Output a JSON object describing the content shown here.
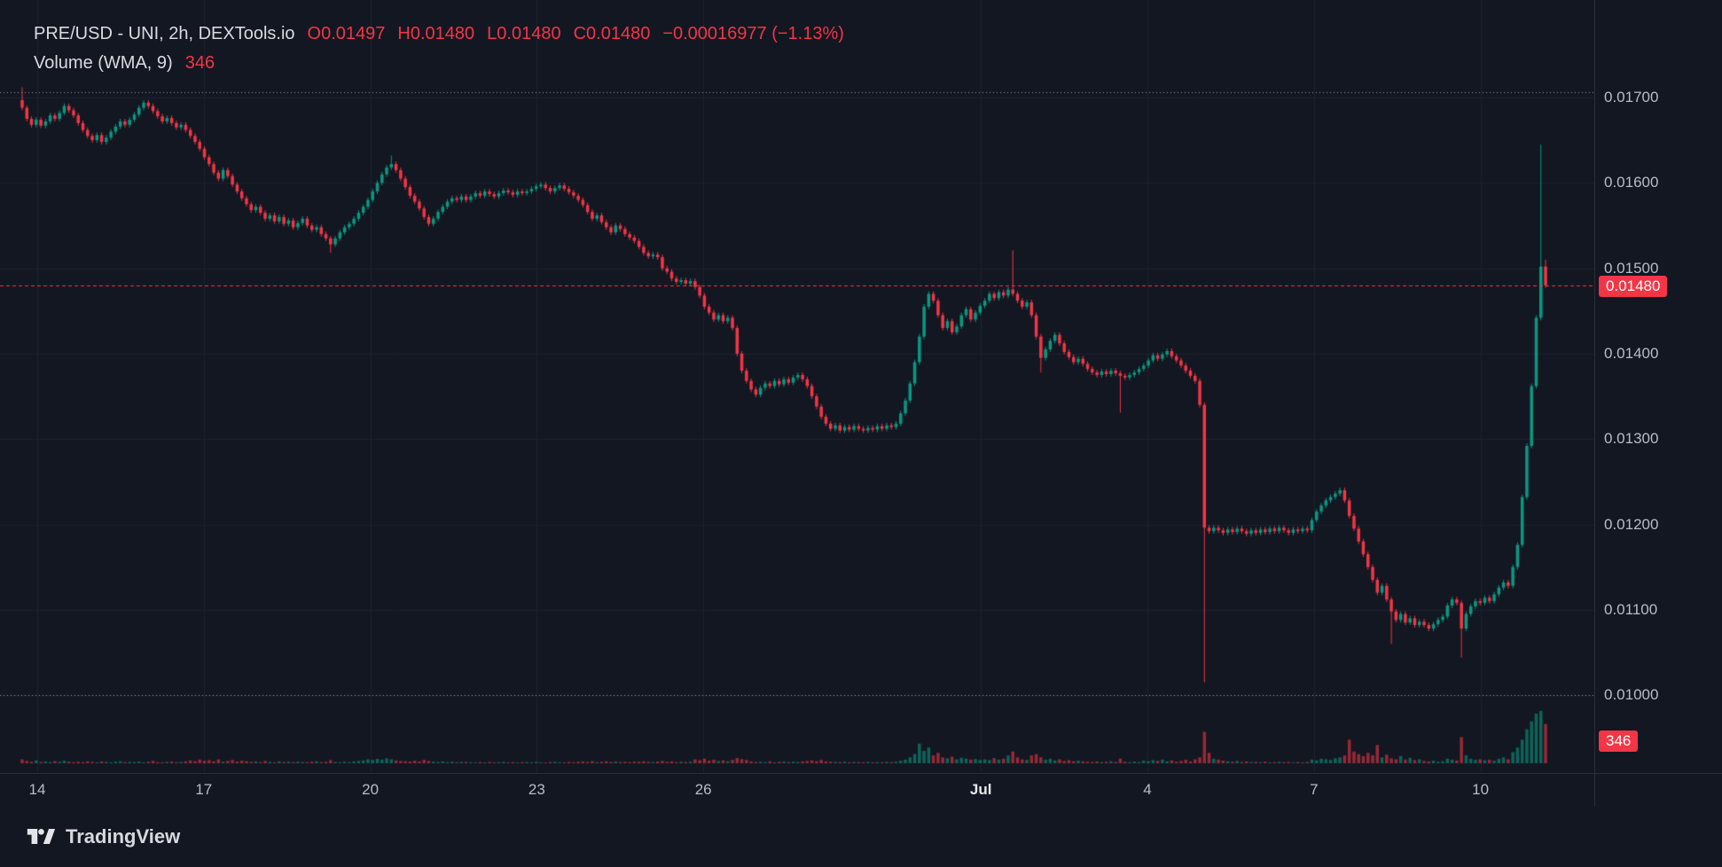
{
  "header": {
    "title": "PRE/USD - UNI, 2h, DEXTools.io",
    "ohlc": [
      {
        "label": "O",
        "value": "0.01497"
      },
      {
        "label": "H",
        "value": "0.01480"
      },
      {
        "label": "L",
        "value": "0.01480"
      },
      {
        "label": "C",
        "value": "0.01480"
      }
    ],
    "change": "−0.00016977 (−1.13%)",
    "volume_label": "Volume (WMA, 9)",
    "volume_value": "346"
  },
  "colors": {
    "bg": "#131722",
    "up": "#089981",
    "down": "#f23645",
    "grid": "#1e222f",
    "dotted_level": "#9598a1",
    "axis_border": "#2a2e39",
    "axis_text": "#b8bcc6",
    "accent_red": "#f23645"
  },
  "y_axis": {
    "ticks": [
      "0.01700",
      "0.01600",
      "0.01500",
      "0.01400",
      "0.01300",
      "0.01200",
      "0.01100",
      "0.01000"
    ]
  },
  "x_axis": {
    "labels": [
      {
        "text": "14",
        "day": 0
      },
      {
        "text": "17",
        "day": 3
      },
      {
        "text": "20",
        "day": 6
      },
      {
        "text": "23",
        "day": 9
      },
      {
        "text": "26",
        "day": 12
      },
      {
        "text": "Jul",
        "day": 17,
        "emphasis": true
      },
      {
        "text": "4",
        "day": 20
      },
      {
        "text": "7",
        "day": 23
      },
      {
        "text": "10",
        "day": 26
      }
    ]
  },
  "price_line": {
    "value": 0.0148,
    "label": "0.01480"
  },
  "volume_badge": "346",
  "dotted_levels": [
    0.01706,
    0.01
  ],
  "footer": {
    "brand": "TradingView"
  },
  "chart_data": {
    "type": "candlestick",
    "title": "PRE/USD - UNI, 2h, DEXTools.io",
    "interval": "2h",
    "price_scale": 1e-05,
    "ylim": [
      0.00909,
      0.01814
    ],
    "open_first_1e5": 1697,
    "default_wick_1e5": 3,
    "closes_1e5": [
      1688,
      1675,
      1668,
      1674,
      1667,
      1672,
      1679,
      1675,
      1682,
      1690,
      1685,
      1679,
      1670,
      1662,
      1655,
      1650,
      1656,
      1648,
      1653,
      1660,
      1666,
      1672,
      1668,
      1674,
      1680,
      1688,
      1694,
      1690,
      1684,
      1678,
      1672,
      1676,
      1670,
      1665,
      1668,
      1662,
      1655,
      1648,
      1640,
      1630,
      1622,
      1612,
      1605,
      1615,
      1608,
      1598,
      1590,
      1582,
      1575,
      1568,
      1572,
      1565,
      1558,
      1562,
      1555,
      1560,
      1552,
      1556,
      1548,
      1553,
      1558,
      1550,
      1545,
      1548,
      1540,
      1535,
      1528,
      1535,
      1542,
      1548,
      1552,
      1558,
      1565,
      1572,
      1580,
      1590,
      1600,
      1610,
      1618,
      1622,
      1615,
      1605,
      1595,
      1585,
      1578,
      1570,
      1560,
      1552,
      1558,
      1566,
      1572,
      1578,
      1582,
      1580,
      1584,
      1580,
      1584,
      1588,
      1585,
      1590,
      1587,
      1584,
      1588,
      1591,
      1589,
      1586,
      1590,
      1588,
      1590,
      1593,
      1596,
      1598,
      1594,
      1590,
      1594,
      1597,
      1593,
      1589,
      1585,
      1580,
      1574,
      1566,
      1558,
      1562,
      1554,
      1548,
      1542,
      1550,
      1546,
      1540,
      1536,
      1532,
      1525,
      1518,
      1514,
      1516,
      1513,
      1500,
      1496,
      1488,
      1484,
      1486,
      1482,
      1485,
      1478,
      1468,
      1455,
      1448,
      1440,
      1445,
      1438,
      1442,
      1430,
      1400,
      1380,
      1368,
      1358,
      1352,
      1360,
      1365,
      1362,
      1368,
      1364,
      1370,
      1366,
      1372,
      1375,
      1370,
      1362,
      1350,
      1338,
      1326,
      1318,
      1312,
      1316,
      1310,
      1314,
      1311,
      1315,
      1312,
      1310,
      1313,
      1311,
      1315,
      1312,
      1316,
      1314,
      1318,
      1330,
      1345,
      1365,
      1390,
      1420,
      1455,
      1470,
      1462,
      1445,
      1430,
      1438,
      1425,
      1432,
      1445,
      1452,
      1440,
      1448,
      1456,
      1462,
      1470,
      1465,
      1472,
      1468,
      1475,
      1470,
      1462,
      1455,
      1460,
      1445,
      1420,
      1395,
      1405,
      1415,
      1422,
      1412,
      1402,
      1396,
      1390,
      1394,
      1388,
      1382,
      1378,
      1375,
      1379,
      1376,
      1380,
      1377,
      1374,
      1372,
      1375,
      1378,
      1382,
      1386,
      1392,
      1398,
      1394,
      1399,
      1403,
      1397,
      1392,
      1386,
      1380,
      1374,
      1368,
      1340,
      1196,
      1192,
      1196,
      1193,
      1190,
      1194,
      1191,
      1195,
      1192,
      1189,
      1193,
      1190,
      1194,
      1191,
      1195,
      1192,
      1196,
      1193,
      1190,
      1194,
      1192,
      1195,
      1193,
      1205,
      1215,
      1222,
      1228,
      1232,
      1236,
      1240,
      1228,
      1210,
      1195,
      1180,
      1165,
      1150,
      1135,
      1120,
      1128,
      1112,
      1098,
      1088,
      1095,
      1085,
      1090,
      1082,
      1086,
      1082,
      1078,
      1083,
      1088,
      1092,
      1105,
      1112,
      1108,
      1078,
      1095,
      1104,
      1110,
      1108,
      1114,
      1110,
      1118,
      1126,
      1132,
      1128,
      1150,
      1176,
      1232,
      1292,
      1362,
      1442,
      1502,
      1480
    ],
    "volumes": [
      30,
      18,
      12,
      22,
      10,
      14,
      9,
      16,
      11,
      20,
      13,
      9,
      12,
      9,
      15,
      11,
      8,
      14,
      10,
      7,
      12,
      16,
      9,
      11,
      10,
      14,
      8,
      12,
      18,
      9,
      7,
      11,
      13,
      8,
      10,
      15,
      22,
      16,
      28,
      19,
      24,
      15,
      30,
      12,
      18,
      25,
      14,
      20,
      16,
      11,
      14,
      9,
      18,
      12,
      8,
      15,
      10,
      13,
      9,
      12,
      10,
      8,
      12,
      15,
      9,
      11,
      24,
      10,
      8,
      12,
      9,
      14,
      18,
      22,
      30,
      26,
      34,
      28,
      38,
      30,
      22,
      18,
      16,
      14,
      20,
      14,
      26,
      18,
      12,
      10,
      14,
      9,
      12,
      8,
      11,
      10,
      8,
      6,
      9,
      7,
      10,
      6,
      8,
      11,
      7,
      9,
      6,
      8,
      9,
      7,
      10,
      8,
      6,
      9,
      11,
      8,
      7,
      10,
      8,
      12,
      14,
      10,
      16,
      9,
      12,
      15,
      10,
      13,
      9,
      11,
      8,
      12,
      12,
      15,
      10,
      9,
      13,
      18,
      11,
      14,
      9,
      12,
      10,
      13,
      30,
      24,
      35,
      20,
      28,
      18,
      22,
      16,
      26,
      40,
      32,
      25,
      14,
      10,
      12,
      9,
      15,
      8,
      11,
      13,
      9,
      12,
      10,
      14,
      18,
      22,
      16,
      26,
      14,
      12,
      10,
      9,
      12,
      8,
      10,
      9,
      8,
      10,
      7,
      9,
      8,
      11,
      9,
      12,
      20,
      28,
      45,
      70,
      150,
      95,
      120,
      60,
      80,
      45,
      38,
      50,
      30,
      42,
      36,
      28,
      32,
      26,
      30,
      24,
      40,
      28,
      35,
      60,
      90,
      45,
      30,
      26,
      60,
      70,
      45,
      28,
      35,
      22,
      30,
      18,
      24,
      16,
      20,
      15,
      12,
      10,
      14,
      9,
      11,
      16,
      10,
      35,
      12,
      9,
      13,
      10,
      20,
      16,
      24,
      18,
      28,
      15,
      22,
      12,
      18,
      26,
      14,
      30,
      45,
      240,
      80,
      35,
      28,
      20,
      16,
      12,
      18,
      10,
      14,
      9,
      10,
      8,
      12,
      7,
      9,
      11,
      8,
      10,
      6,
      9,
      7,
      10,
      28,
      22,
      35,
      30,
      26,
      38,
      45,
      60,
      180,
      90,
      70,
      55,
      80,
      60,
      140,
      45,
      65,
      38,
      30,
      55,
      28,
      42,
      24,
      30,
      18,
      14,
      20,
      12,
      16,
      35,
      28,
      22,
      200,
      60,
      35,
      26,
      30,
      24,
      28,
      20,
      35,
      45,
      30,
      85,
      120,
      180,
      260,
      320,
      380,
      400,
      300
    ],
    "wick_overrides": [
      {
        "i": 0,
        "high": 1712
      },
      {
        "i": 66,
        "low": 1518
      },
      {
        "i": 79,
        "high": 1632
      },
      {
        "i": 212,
        "high": 1521
      },
      {
        "i": 218,
        "low": 1378
      },
      {
        "i": 235,
        "low": 1331
      },
      {
        "i": 253,
        "low": 1015
      },
      {
        "i": 293,
        "low": 1060
      },
      {
        "i": 308,
        "low": 1044
      },
      {
        "i": 325,
        "high": 1645
      },
      {
        "i": 326,
        "high": 1510
      }
    ]
  }
}
